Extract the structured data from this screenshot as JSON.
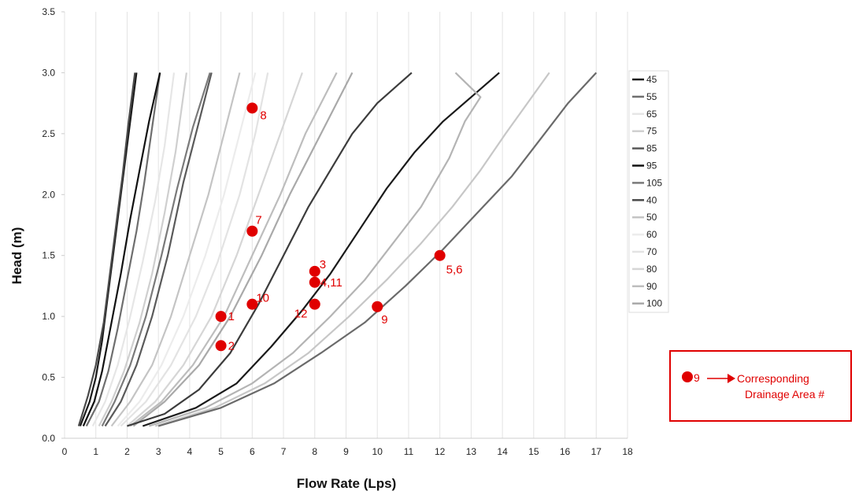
{
  "chart_data": {
    "type": "line",
    "xlabel": "Flow Rate (Lps)",
    "ylabel": "Head (m)",
    "xlim": [
      0,
      18
    ],
    "ylim": [
      0,
      3.5
    ],
    "x_ticks": [
      "0",
      "1",
      "2",
      "3",
      "4",
      "5",
      "6",
      "7",
      "8",
      "9",
      "10",
      "11",
      "12",
      "13",
      "14",
      "15",
      "16",
      "17",
      "18"
    ],
    "y_ticks": [
      "0.0",
      "0.5",
      "1.0",
      "1.5",
      "2.0",
      "2.5",
      "3.0",
      "3.5"
    ],
    "grid": "vertical",
    "legend_position": "right",
    "series": [
      {
        "name": "45",
        "color": "#1a1a1a",
        "points": [
          [
            0.5,
            0.1
          ],
          [
            0.8,
            0.3
          ],
          [
            1.0,
            0.5
          ],
          [
            1.2,
            0.8
          ],
          [
            1.4,
            1.2
          ],
          [
            1.6,
            1.6
          ],
          [
            1.8,
            2.0
          ],
          [
            2.0,
            2.4
          ],
          [
            2.15,
            2.7
          ],
          [
            2.3,
            3.0
          ]
        ]
      },
      {
        "name": "55",
        "color": "#6e6e6e",
        "points": [
          [
            0.7,
            0.1
          ],
          [
            1.1,
            0.3
          ],
          [
            1.4,
            0.55
          ],
          [
            1.7,
            0.9
          ],
          [
            2.0,
            1.3
          ],
          [
            2.3,
            1.7
          ],
          [
            2.55,
            2.1
          ],
          [
            2.8,
            2.55
          ],
          [
            3.05,
            3.0
          ]
        ]
      },
      {
        "name": "65",
        "color": "#e6e6e6",
        "points": [
          [
            0.9,
            0.1
          ],
          [
            1.3,
            0.3
          ],
          [
            1.7,
            0.6
          ],
          [
            2.1,
            1.0
          ],
          [
            2.5,
            1.45
          ],
          [
            2.9,
            1.95
          ],
          [
            3.2,
            2.4
          ],
          [
            3.5,
            3.0
          ]
        ]
      },
      {
        "name": "75",
        "color": "#cfcfcf",
        "points": [
          [
            1.1,
            0.1
          ],
          [
            1.5,
            0.3
          ],
          [
            1.9,
            0.55
          ],
          [
            2.4,
            0.95
          ],
          [
            2.8,
            1.35
          ],
          [
            3.2,
            1.85
          ],
          [
            3.55,
            2.35
          ],
          [
            3.9,
            3.0
          ]
        ]
      },
      {
        "name": "85",
        "color": "#5a5a5a",
        "points": [
          [
            1.3,
            0.1
          ],
          [
            1.8,
            0.3
          ],
          [
            2.3,
            0.6
          ],
          [
            2.8,
            1.0
          ],
          [
            3.3,
            1.5
          ],
          [
            3.8,
            2.1
          ],
          [
            4.3,
            2.6
          ],
          [
            4.7,
            3.0
          ]
        ]
      },
      {
        "name": "95",
        "color": "#111111",
        "points": [
          [
            0.6,
            0.1
          ],
          [
            0.95,
            0.3
          ],
          [
            1.2,
            0.55
          ],
          [
            1.5,
            0.95
          ],
          [
            1.8,
            1.35
          ],
          [
            2.1,
            1.8
          ],
          [
            2.4,
            2.2
          ],
          [
            2.7,
            2.6
          ],
          [
            3.05,
            3.0
          ]
        ]
      },
      {
        "name": "105",
        "color": "#7a7a7a",
        "points": [
          [
            1.2,
            0.1
          ],
          [
            1.6,
            0.3
          ],
          [
            2.1,
            0.6
          ],
          [
            2.6,
            1.0
          ],
          [
            3.1,
            1.5
          ],
          [
            3.6,
            2.05
          ],
          [
            4.1,
            2.55
          ],
          [
            4.65,
            3.0
          ]
        ]
      },
      {
        "name": "40",
        "color": "#4a4a4a",
        "points": [
          [
            0.45,
            0.1
          ],
          [
            0.75,
            0.35
          ],
          [
            1.0,
            0.6
          ],
          [
            1.25,
            0.95
          ],
          [
            1.45,
            1.35
          ],
          [
            1.65,
            1.75
          ],
          [
            1.85,
            2.15
          ],
          [
            2.05,
            2.6
          ],
          [
            2.25,
            3.0
          ]
        ]
      },
      {
        "name": "50",
        "color": "#c4c4c4",
        "points": [
          [
            1.5,
            0.1
          ],
          [
            2.1,
            0.3
          ],
          [
            2.8,
            0.6
          ],
          [
            3.4,
            1.0
          ],
          [
            4.0,
            1.5
          ],
          [
            4.6,
            2.0
          ],
          [
            5.1,
            2.5
          ],
          [
            5.6,
            3.0
          ]
        ]
      },
      {
        "name": "60",
        "color": "#ececec",
        "points": [
          [
            1.7,
            0.1
          ],
          [
            2.4,
            0.3
          ],
          [
            3.1,
            0.6
          ],
          [
            3.8,
            1.0
          ],
          [
            4.5,
            1.5
          ],
          [
            5.1,
            2.0
          ],
          [
            5.6,
            2.5
          ],
          [
            6.1,
            3.0
          ]
        ]
      },
      {
        "name": "70",
        "color": "#e3e3e3",
        "points": [
          [
            1.8,
            0.1
          ],
          [
            2.6,
            0.3
          ],
          [
            3.4,
            0.6
          ],
          [
            4.2,
            1.0
          ],
          [
            4.9,
            1.45
          ],
          [
            5.6,
            2.0
          ],
          [
            6.1,
            2.5
          ],
          [
            6.5,
            3.0
          ]
        ]
      },
      {
        "name": "80",
        "color": "#d6d6d6",
        "points": [
          [
            2.0,
            0.1
          ],
          [
            2.9,
            0.3
          ],
          [
            3.8,
            0.6
          ],
          [
            4.7,
            1.0
          ],
          [
            5.5,
            1.5
          ],
          [
            6.2,
            2.0
          ],
          [
            6.9,
            2.5
          ],
          [
            7.6,
            3.0
          ]
        ]
      },
      {
        "name": "90",
        "color": "#bdbdbd",
        "points": [
          [
            2.1,
            0.1
          ],
          [
            3.1,
            0.3
          ],
          [
            4.1,
            0.6
          ],
          [
            5.1,
            1.0
          ],
          [
            6.0,
            1.5
          ],
          [
            6.9,
            2.0
          ],
          [
            7.7,
            2.5
          ],
          [
            8.7,
            3.0
          ]
        ]
      },
      {
        "name": "100",
        "color": "#a9a9a9",
        "points": [
          [
            2.2,
            0.1
          ],
          [
            3.2,
            0.3
          ],
          [
            4.3,
            0.6
          ],
          [
            5.3,
            1.0
          ],
          [
            6.3,
            1.5
          ],
          [
            7.2,
            2.0
          ],
          [
            8.2,
            2.5
          ],
          [
            9.2,
            3.0
          ]
        ]
      },
      {
        "name": "",
        "color": "#3c3c3c",
        "points": [
          [
            2.0,
            0.1
          ],
          [
            3.2,
            0.2
          ],
          [
            4.3,
            0.4
          ],
          [
            5.3,
            0.7
          ],
          [
            6.2,
            1.1
          ],
          [
            7.0,
            1.5
          ],
          [
            7.8,
            1.9
          ],
          [
            8.5,
            2.2
          ],
          [
            9.2,
            2.5
          ],
          [
            10.0,
            2.75
          ],
          [
            11.1,
            3.0
          ]
        ]
      },
      {
        "name": "",
        "color": "#1a1a1a",
        "points": [
          [
            2.5,
            0.1
          ],
          [
            4.2,
            0.25
          ],
          [
            5.5,
            0.45
          ],
          [
            6.6,
            0.75
          ],
          [
            7.6,
            1.05
          ],
          [
            8.5,
            1.35
          ],
          [
            9.4,
            1.7
          ],
          [
            10.3,
            2.05
          ],
          [
            11.2,
            2.35
          ],
          [
            12.1,
            2.6
          ],
          [
            13.0,
            2.8
          ],
          [
            13.9,
            3.0
          ]
        ]
      },
      {
        "name": "",
        "color": "#b4b4b4",
        "points": [
          [
            2.7,
            0.1
          ],
          [
            4.5,
            0.25
          ],
          [
            6.0,
            0.45
          ],
          [
            7.3,
            0.7
          ],
          [
            8.5,
            1.0
          ],
          [
            9.6,
            1.3
          ],
          [
            10.5,
            1.6
          ],
          [
            11.4,
            1.9
          ],
          [
            12.3,
            2.3
          ],
          [
            12.8,
            2.6
          ],
          [
            13.3,
            2.8
          ],
          [
            12.5,
            3.0
          ]
        ]
      },
      {
        "name": "",
        "color": "#c7c7c7",
        "points": [
          [
            2.9,
            0.1
          ],
          [
            4.8,
            0.25
          ],
          [
            6.4,
            0.45
          ],
          [
            7.8,
            0.7
          ],
          [
            9.1,
            1.0
          ],
          [
            10.3,
            1.3
          ],
          [
            11.4,
            1.6
          ],
          [
            12.4,
            1.9
          ],
          [
            13.3,
            2.2
          ],
          [
            14.1,
            2.5
          ],
          [
            14.8,
            2.75
          ],
          [
            15.5,
            3.0
          ]
        ]
      },
      {
        "name": "",
        "color": "#6a6a6a",
        "points": [
          [
            3.0,
            0.1
          ],
          [
            5.0,
            0.25
          ],
          [
            6.7,
            0.45
          ],
          [
            8.2,
            0.7
          ],
          [
            9.6,
            0.95
          ],
          [
            10.9,
            1.25
          ],
          [
            12.1,
            1.55
          ],
          [
            13.2,
            1.85
          ],
          [
            14.3,
            2.15
          ],
          [
            15.2,
            2.45
          ],
          [
            16.1,
            2.75
          ],
          [
            17.0,
            3.0
          ]
        ]
      }
    ],
    "legend": [
      "45",
      "55",
      "65",
      "75",
      "85",
      "95",
      "105",
      "40",
      "50",
      "60",
      "70",
      "80",
      "90",
      "100"
    ],
    "points": [
      {
        "label": "1",
        "x": 5,
        "y": 1.0
      },
      {
        "label": "2",
        "x": 5,
        "y": 0.76
      },
      {
        "label": "3",
        "x": 8,
        "y": 1.37
      },
      {
        "label": "4,11",
        "x": 8,
        "y": 1.28
      },
      {
        "label": "5,6",
        "x": 12,
        "y": 1.5
      },
      {
        "label": "7",
        "x": 6,
        "y": 1.7
      },
      {
        "label": "8",
        "x": 6,
        "y": 2.71
      },
      {
        "label": "9",
        "x": 10,
        "y": 1.08
      },
      {
        "label": "10",
        "x": 6,
        "y": 1.1
      },
      {
        "label": "12",
        "x": 8,
        "y": 1.1
      }
    ],
    "point_color": "#e00000"
  },
  "key": {
    "marker_label": "9",
    "line1": "Corresponding",
    "line2": "Drainage Area #"
  }
}
